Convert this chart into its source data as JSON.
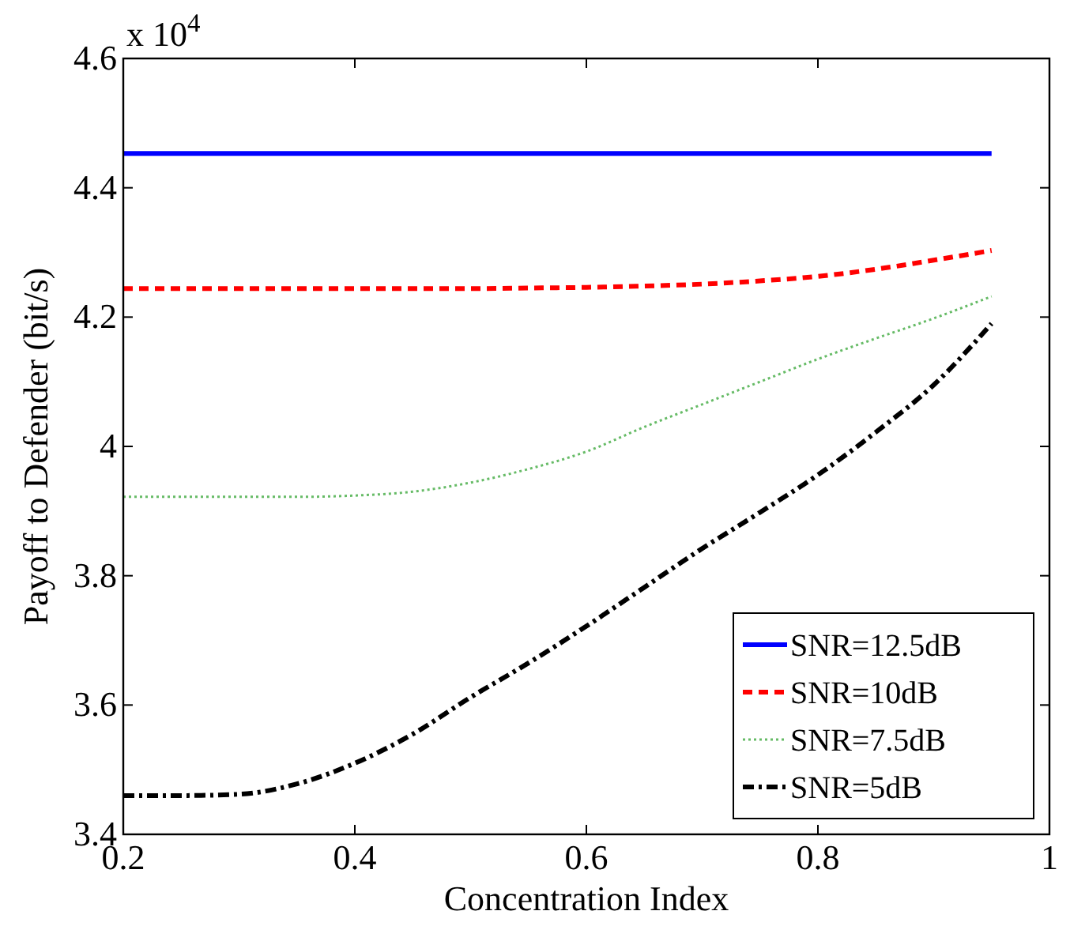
{
  "chart_data": {
    "type": "line",
    "xlabel": "Concentration Index",
    "ylabel": "Payoff to Defender (bit/s)",
    "annotations": [
      "x 10$^{4}$"
    ],
    "x": [
      0.2,
      0.25,
      0.3,
      0.35,
      0.4,
      0.45,
      0.5,
      0.55,
      0.6,
      0.65,
      0.7,
      0.75,
      0.8,
      0.85,
      0.9,
      0.95
    ],
    "series": [
      {
        "name": "SNR=12.5dB",
        "color": "#0000ff",
        "line_style": "solid",
        "values": [
          4.453,
          4.453,
          4.453,
          4.453,
          4.453,
          4.453,
          4.453,
          4.453,
          4.453,
          4.453,
          4.453,
          4.453,
          4.453,
          4.453,
          4.453,
          4.453
        ]
      },
      {
        "name": "SNR=10dB",
        "color": "#ff0000",
        "line_style": "dashed",
        "values": [
          4.244,
          4.244,
          4.244,
          4.244,
          4.244,
          4.244,
          4.244,
          4.245,
          4.246,
          4.248,
          4.251,
          4.256,
          4.263,
          4.274,
          4.288,
          4.303
        ]
      },
      {
        "name": "SNR=7.5dB",
        "color": "#66bb66",
        "line_style": "dotted",
        "values": [
          3.922,
          3.922,
          3.922,
          3.922,
          3.924,
          3.93,
          3.944,
          3.965,
          3.992,
          4.03,
          4.065,
          4.1,
          4.135,
          4.167,
          4.198,
          4.232
        ]
      },
      {
        "name": "SNR=5dB",
        "color": "#000000",
        "line_style": "dashdot",
        "values": [
          3.46,
          3.46,
          3.462,
          3.478,
          3.51,
          3.555,
          3.612,
          3.665,
          3.722,
          3.782,
          3.842,
          3.898,
          3.956,
          4.022,
          4.095,
          4.19
        ]
      }
    ],
    "xlim": [
      0.2,
      1
    ],
    "xticks": [
      0.2,
      0.4,
      0.6,
      0.8,
      1
    ],
    "ylim": [
      3.4,
      4.6
    ],
    "yticks": [
      3.4,
      3.6,
      3.8,
      4,
      4.2,
      4.4,
      4.6
    ],
    "legend": "bottom right",
    "grid": false
  }
}
